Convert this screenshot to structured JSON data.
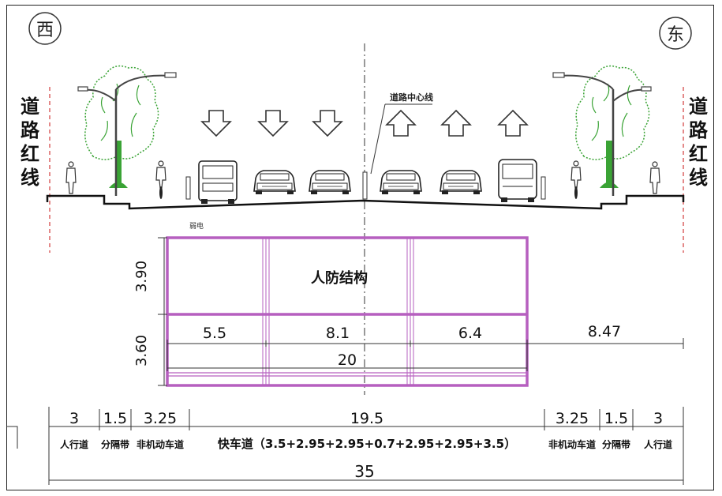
{
  "compass": {
    "west": "西",
    "east": "东"
  },
  "red_line_label": "道路红线",
  "center_line_label": "道路中心线",
  "utility_label": "弱电",
  "structure": {
    "label": "人防结构",
    "height_top": "3.90",
    "height_bottom": "3.60",
    "widths": [
      "5.5",
      "8.1",
      "6.4"
    ],
    "total_width": "20",
    "offset_right": "8.47"
  },
  "sections": [
    {
      "width": "3",
      "label": "人行道"
    },
    {
      "width": "1.5",
      "label": "分隔带"
    },
    {
      "width": "3.25",
      "label": "非机动车道"
    },
    {
      "width": "19.5",
      "label": "快车道（3.5+2.95+2.95+0.7+2.95+2.95+3.5）"
    },
    {
      "width": "3.25",
      "label": "非机动车道"
    },
    {
      "width": "1.5",
      "label": "分隔带"
    },
    {
      "width": "3",
      "label": "人行道"
    }
  ],
  "total_width": "35",
  "colors": {
    "structure": "#b65fbf",
    "tree": "#3aa335",
    "red_line": "#d23b3b",
    "ink": "#222222"
  },
  "icons": [
    "tree-icon",
    "street-lamp-icon",
    "pedestrian-icon",
    "cyclist-icon",
    "bus-icon",
    "car-icon",
    "van-icon",
    "down-arrow-icon",
    "up-arrow-icon"
  ]
}
